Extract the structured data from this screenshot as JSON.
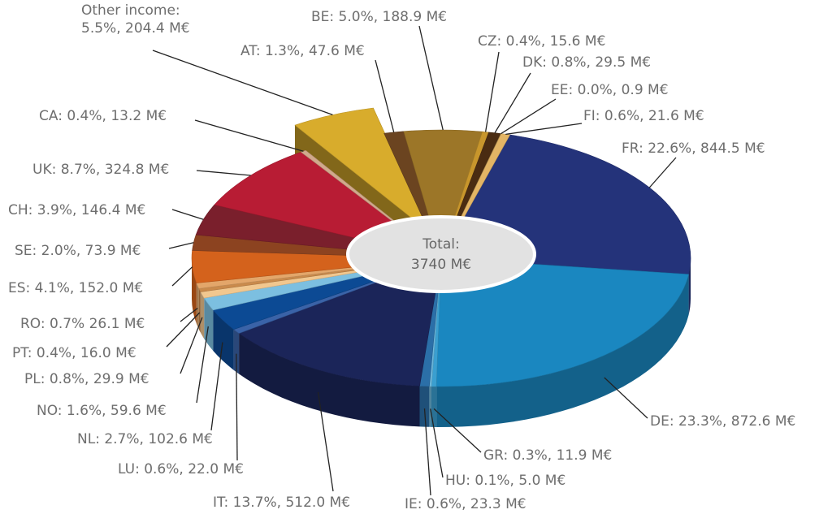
{
  "chart_data": {
    "type": "pie",
    "total_label": "Total:",
    "total_value": "3740 M€",
    "slices": [
      {
        "key": "FR",
        "label": "FR: 22.6%, 844.5 M€",
        "percent": 22.6,
        "value": 844.5,
        "color": "#24337a"
      },
      {
        "key": "DE",
        "label": "DE: 23.3%, 872.6 M€",
        "percent": 23.3,
        "value": 872.6,
        "color": "#1a87c0"
      },
      {
        "key": "GR",
        "label": "GR: 0.3%, 11.9 M€",
        "percent": 0.3,
        "value": 11.9,
        "color": "#3a9fd0"
      },
      {
        "key": "HU",
        "label": "HU: 0.1%, 5.0 M€",
        "percent": 0.1,
        "value": 5.0,
        "color": "#6cb8dc"
      },
      {
        "key": "IE",
        "label": "IE: 0.6%, 23.3 M€",
        "percent": 0.6,
        "value": 23.3,
        "color": "#2b6fa8"
      },
      {
        "key": "IT",
        "label": "IT: 13.7%, 512.0 M€",
        "percent": 13.7,
        "value": 512.0,
        "color": "#1b2559"
      },
      {
        "key": "LU",
        "label": "LU:  0.6%, 22.0 M€",
        "percent": 0.6,
        "value": 22.0,
        "color": "#3a63a8"
      },
      {
        "key": "NL",
        "label": "NL: 2.7%, 102.6 M€",
        "percent": 2.7,
        "value": 102.6,
        "color": "#0c4a94"
      },
      {
        "key": "NO",
        "label": "NO: 1.6%, 59.6 M€",
        "percent": 1.6,
        "value": 59.6,
        "color": "#7cbfe0"
      },
      {
        "key": "PL",
        "label": "PL: 0.8%, 29.9 M€",
        "percent": 0.8,
        "value": 29.9,
        "color": "#f1c78f"
      },
      {
        "key": "PT",
        "label": "PT: 0.4%, 16.0 M€",
        "percent": 0.4,
        "value": 16.0,
        "color": "#c98a4c"
      },
      {
        "key": "RO",
        "label": "RO: 0.7% 26.1 M€",
        "percent": 0.7,
        "value": 26.1,
        "color": "#e3a66a"
      },
      {
        "key": "ES",
        "label": "ES: 4.1%, 152.0 M€",
        "percent": 4.1,
        "value": 152.0,
        "color": "#d4621c"
      },
      {
        "key": "SE",
        "label": "SE: 2.0%, 73.9 M€",
        "percent": 2.0,
        "value": 73.9,
        "color": "#8c4320"
      },
      {
        "key": "CH",
        "label": "CH: 3.9%, 146.4 M€",
        "percent": 3.9,
        "value": 146.4,
        "color": "#7a1f2c"
      },
      {
        "key": "UK",
        "label": "UK: 8.7%, 324.8 M€",
        "percent": 8.7,
        "value": 324.8,
        "color": "#b81c34"
      },
      {
        "key": "CA",
        "label": "CA: 0.4%, 13.2 M€",
        "percent": 0.4,
        "value": 13.2,
        "color": "#d1a98c"
      },
      {
        "key": "OTH",
        "label": "Other income:\n5.5%, 204.4 M€",
        "percent": 5.5,
        "value": 204.4,
        "color": "#d8ac2c",
        "exploded": true
      },
      {
        "key": "AT",
        "label": "AT: 1.3%, 47.6 M€",
        "percent": 1.3,
        "value": 47.6,
        "color": "#6b4420"
      },
      {
        "key": "BE",
        "label": "BE: 5.0%, 188.9 M€",
        "percent": 5.0,
        "value": 188.9,
        "color": "#9c7628"
      },
      {
        "key": "CZ",
        "label": "CZ: 0.4%, 15.6 M€",
        "percent": 0.4,
        "value": 15.6,
        "color": "#c8962c"
      },
      {
        "key": "DK",
        "label": "DK: 0.8%, 29.5 M€",
        "percent": 0.8,
        "value": 29.5,
        "color": "#4a2c12"
      },
      {
        "key": "EE",
        "label": "EE: 0.0%, 0.9 M€",
        "percent": 0.0,
        "value": 0.9,
        "color": "#8a6a3a"
      },
      {
        "key": "FI",
        "label": "FI: 0.6%, 21.6 M€",
        "percent": 0.6,
        "value": 21.6,
        "color": "#e3b565"
      }
    ]
  }
}
